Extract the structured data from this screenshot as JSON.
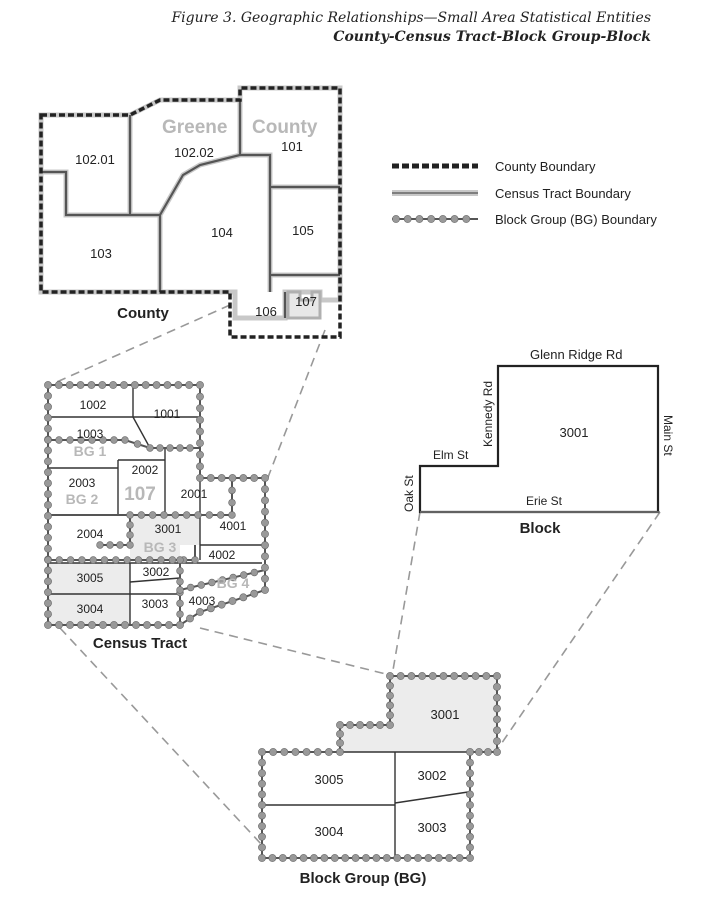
{
  "title": {
    "line1": "Figure 3.  Geographic Relationships—Small Area Statistical Entities",
    "line2": "County-Census Tract-Block Group-Block"
  },
  "county_map": {
    "name_word1": "Greene",
    "name_word2": "County",
    "tracts": [
      "102.01",
      "102.02",
      "101",
      "103",
      "104",
      "105",
      "106",
      "107"
    ],
    "caption": "County"
  },
  "legend": [
    {
      "key": "county",
      "label": "County Boundary"
    },
    {
      "key": "tract",
      "label": "Census Tract Boundary"
    },
    {
      "key": "bg",
      "label": "Block Group (BG) Boundary"
    }
  ],
  "tract_map": {
    "blocks": [
      "1002",
      "1001",
      "1003",
      "2002",
      "2003",
      "2001",
      "2004",
      "3001",
      "4001",
      "4002",
      "3005",
      "3002",
      "3004",
      "3003",
      "4003"
    ],
    "bg_labels": [
      "BG 1",
      "BG 2",
      "BG 3",
      "BG 4"
    ],
    "tract_number": "107",
    "caption": "Census Tract"
  },
  "block_map": {
    "block": "3001",
    "streets": [
      "Glenn Ridge Rd",
      "Kennedy Rd",
      "Elm St",
      "Oak St",
      "Erie St",
      "Main St"
    ],
    "caption": "Block"
  },
  "bg_map": {
    "blocks": [
      "3001",
      "3005",
      "3002",
      "3004",
      "3003"
    ],
    "caption": "Block Group (BG)"
  },
  "colors": {
    "ghost_label": "#b8b8b8",
    "highlight_fill": "#ececec",
    "bg_dot": "#999999",
    "tract_line": "#c8c8c8",
    "county_line": "#222222"
  }
}
